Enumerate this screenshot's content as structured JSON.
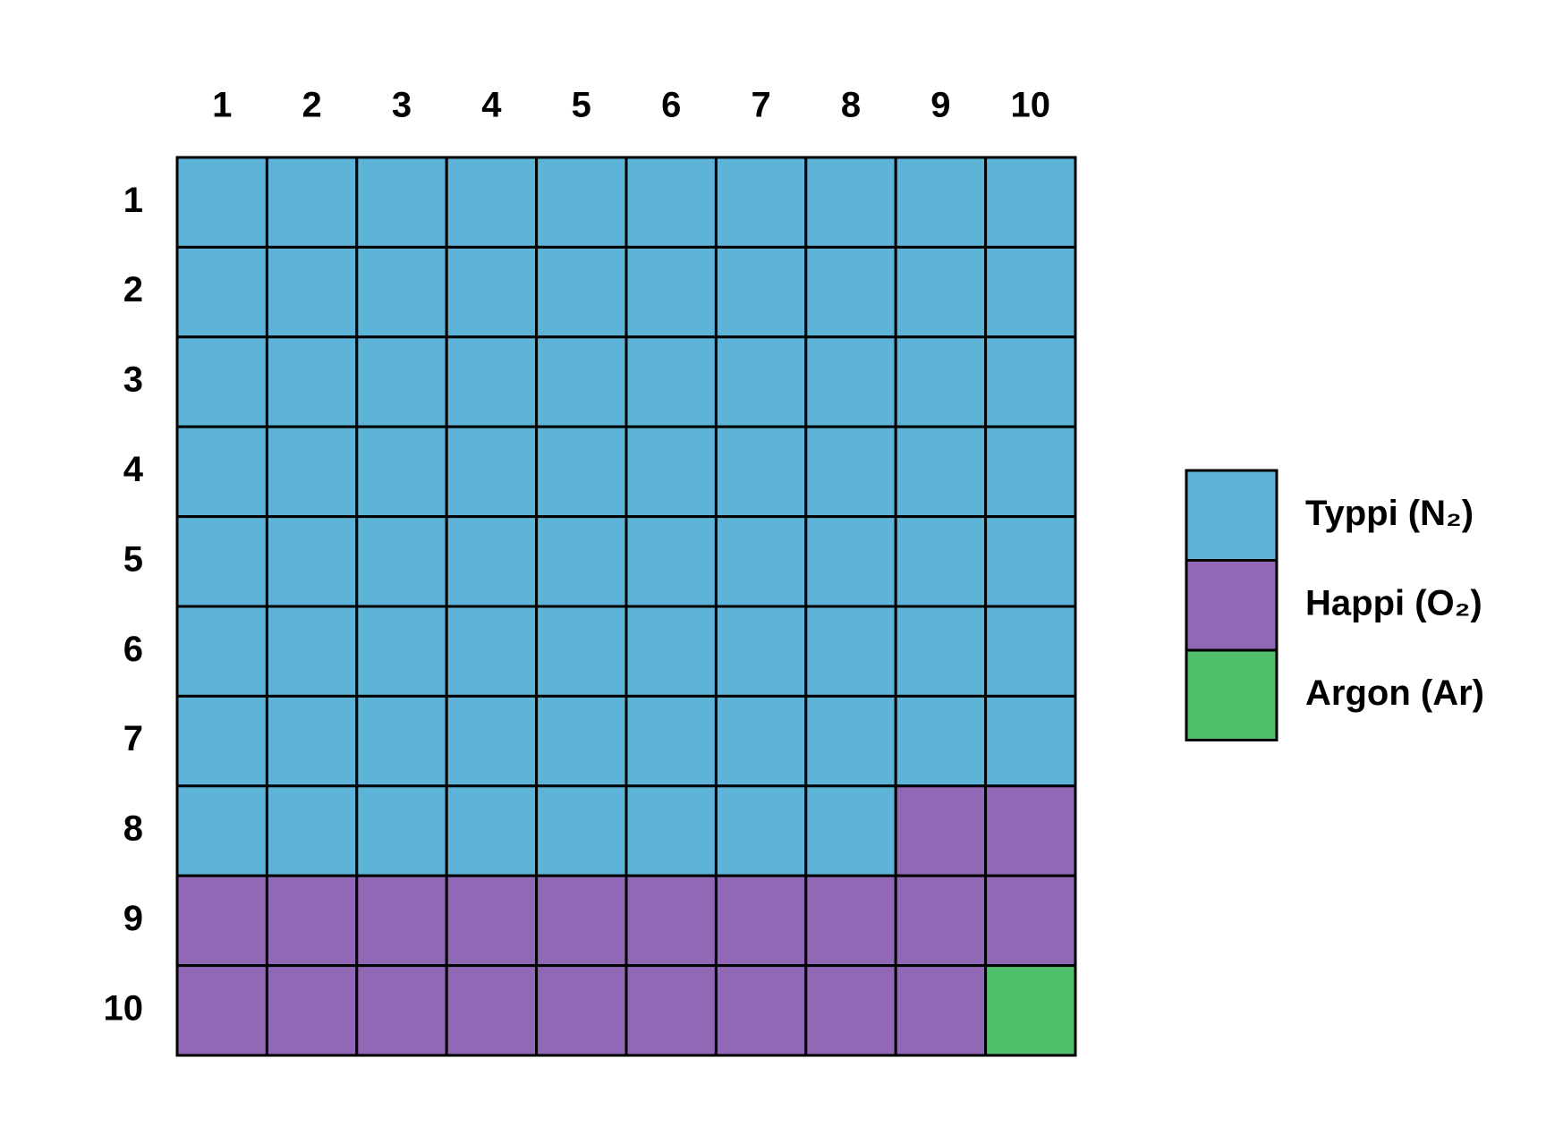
{
  "chart_data": {
    "type": "waffle",
    "column_labels": [
      1,
      2,
      3,
      4,
      5,
      6,
      7,
      8,
      9,
      10
    ],
    "row_labels": [
      1,
      2,
      3,
      4,
      5,
      6,
      7,
      8,
      9,
      10
    ],
    "series": [
      {
        "name": "Typpi (N₂)",
        "color": "#5db4d8",
        "values": [
          78
        ]
      },
      {
        "name": "Happi (O₂)",
        "color": "#9068b5",
        "values": [
          21
        ]
      },
      {
        "name": "Argon (Ar)",
        "color": "#50c06c",
        "values": [
          1
        ]
      }
    ]
  }
}
